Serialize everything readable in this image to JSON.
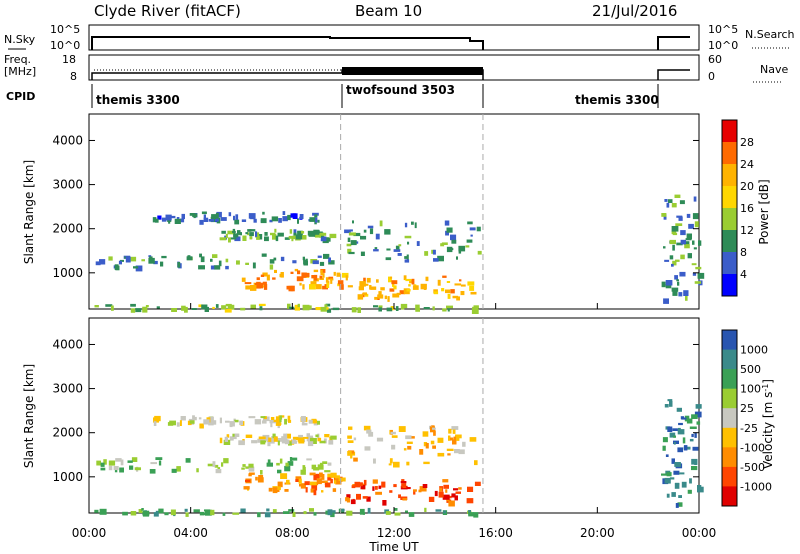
{
  "header": {
    "station": "Clyde River (fitACF)",
    "beam": "Beam 10",
    "date": "21/Jul/2016"
  },
  "panels": {
    "nsky_label": "N.Sky",
    "nsearch_label": "N.Search",
    "nsky_ticks": [
      "10^5",
      "10^0"
    ],
    "nsearch_ticks": [
      "10^5",
      "10^0"
    ],
    "freq_label_1": "Freq.",
    "freq_label_2": "[MHz]",
    "freq_ticks": [
      "18",
      "8"
    ],
    "nave_label": "Nave",
    "nave_ticks": [
      "60",
      "0"
    ],
    "cpid_label": "CPID",
    "cpid_segments": [
      {
        "label": "themis 3300",
        "start_h": 0.0,
        "end_h": 9.9
      },
      {
        "label": "twofsound 3503",
        "start_h": 9.9,
        "end_h": 15.5
      },
      {
        "label": "themis 3300",
        "start_h": 22.5,
        "end_h": 24.0
      }
    ]
  },
  "chart_data": [
    {
      "type": "heatmap",
      "name": "power",
      "ylabel": "Slant Range [km]",
      "xlabel": "Time UT",
      "ylim": [
        180,
        4600
      ],
      "xlim": [
        0,
        24
      ],
      "y_ticks": [
        "4000",
        "3000",
        "2000",
        "1000"
      ],
      "x_ticks": [
        "00:00",
        "04:00",
        "08:00",
        "12:00",
        "16:00",
        "20:00",
        "00:00"
      ],
      "colorbar_label": "Power [dB]",
      "colorbar_ticks": [
        "28",
        "24",
        "20",
        "16",
        "12",
        "8",
        "4"
      ],
      "colorbar_colors": [
        "#e60000",
        "#ff6a00",
        "#ffb300",
        "#ffd700",
        "#9acd32",
        "#2e8b57",
        "#3b5dc9",
        "#0000ff"
      ],
      "data_gap_hours": [
        15.5,
        22.5
      ],
      "dashed_lines_h": [
        9.9,
        15.5
      ],
      "bands": [
        {
          "t0": 0.2,
          "t1": 9.5,
          "r0": 1150,
          "r1": 1450,
          "level": 8
        },
        {
          "t0": 2.5,
          "t1": 9.0,
          "r0": 2200,
          "r1": 2400,
          "level": 6
        },
        {
          "t0": 5.0,
          "t1": 9.5,
          "r0": 1800,
          "r1": 2000,
          "level": 10
        },
        {
          "t0": 6.0,
          "t1": 10.0,
          "r0": 700,
          "r1": 1100,
          "level": 22
        },
        {
          "t0": 10.0,
          "t1": 15.3,
          "r0": 450,
          "r1": 950,
          "level": 20
        },
        {
          "t0": 10.0,
          "t1": 15.3,
          "r0": 1300,
          "r1": 2200,
          "level": 8
        },
        {
          "t0": 0.0,
          "t1": 15.3,
          "r0": 180,
          "r1": 300,
          "level": 12
        },
        {
          "t0": 22.5,
          "t1": 24.0,
          "r0": 400,
          "r1": 2800,
          "level": 8
        }
      ]
    },
    {
      "type": "heatmap",
      "name": "velocity",
      "ylabel": "Slant Range [km]",
      "xlabel": "Time UT",
      "ylim": [
        180,
        4600
      ],
      "xlim": [
        0,
        24
      ],
      "y_ticks": [
        "4000",
        "3000",
        "2000",
        "1000"
      ],
      "x_ticks": [
        "00:00",
        "04:00",
        "08:00",
        "12:00",
        "16:00",
        "20:00",
        "00:00"
      ],
      "colorbar_label": "Velocity [m s",
      "colorbar_label_sup": "-1",
      "colorbar_label_end": "]",
      "colorbar_ticks": [
        "1000",
        "500",
        "100",
        "25",
        "-25",
        "-100",
        "-500",
        "-1000"
      ],
      "colorbar_colors": [
        "#2855b0",
        "#3a8a8a",
        "#3aa055",
        "#9acd32",
        "#c8c8c0",
        "#ffc000",
        "#ff8c00",
        "#ff4500",
        "#e00000"
      ],
      "dashed_lines_h": [
        9.9,
        15.5
      ],
      "bands": [
        {
          "t0": 0.2,
          "t1": 9.5,
          "r0": 1150,
          "r1": 1450,
          "level": 3
        },
        {
          "t0": 2.5,
          "t1": 9.0,
          "r0": 2200,
          "r1": 2400,
          "level": 4
        },
        {
          "t0": 5.0,
          "t1": 9.5,
          "r0": 1800,
          "r1": 2000,
          "level": 4
        },
        {
          "t0": 6.0,
          "t1": 10.0,
          "r0": 700,
          "r1": 1100,
          "level": 6
        },
        {
          "t0": 10.0,
          "t1": 15.3,
          "r0": 450,
          "r1": 950,
          "level": 7
        },
        {
          "t0": 10.0,
          "t1": 15.3,
          "r0": 1300,
          "r1": 2200,
          "level": 5
        },
        {
          "t0": 0.0,
          "t1": 15.3,
          "r0": 180,
          "r1": 300,
          "level": 2
        },
        {
          "t0": 22.5,
          "t1": 24.0,
          "r0": 400,
          "r1": 2800,
          "level": 1
        }
      ]
    }
  ]
}
